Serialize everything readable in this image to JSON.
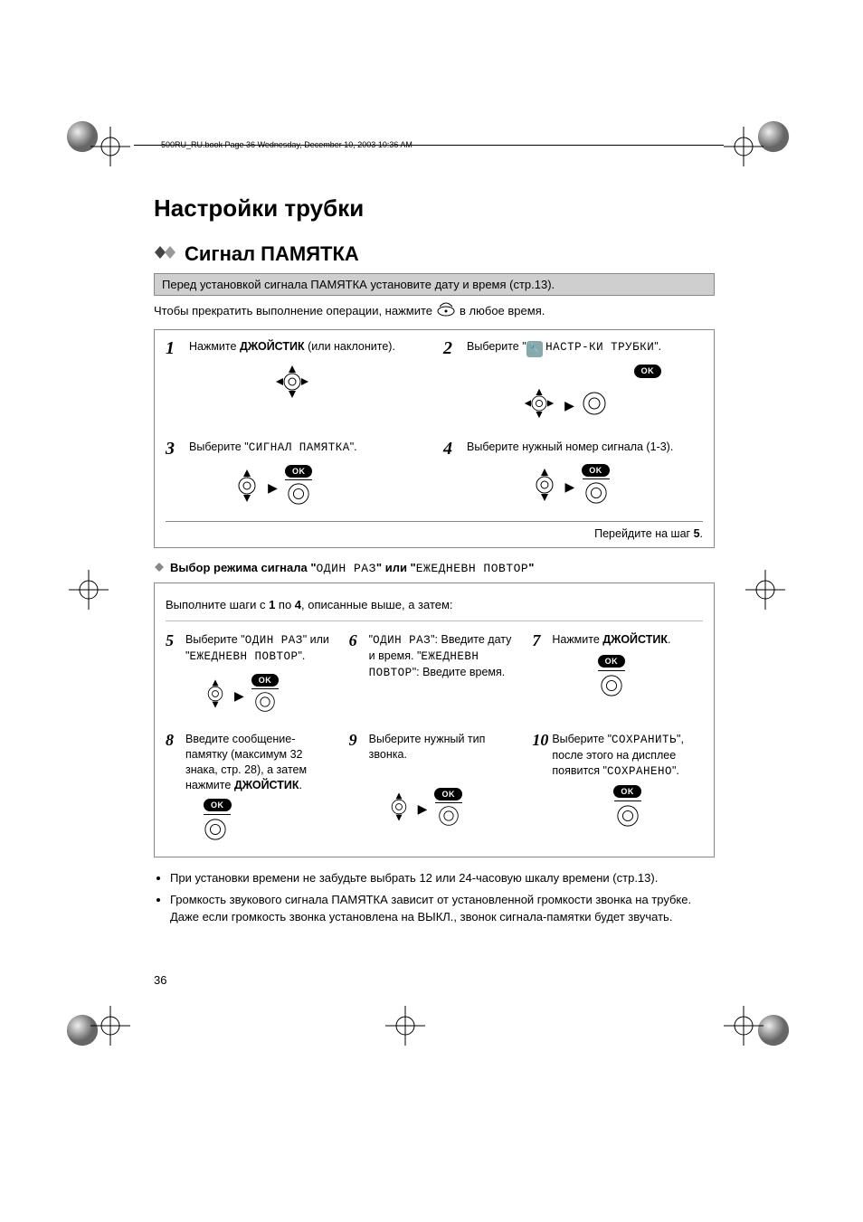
{
  "header_caption": "500RU_RU.book  Page 36  Wednesday, December 10, 2003  10:36 AM",
  "chapter_title": "Настройки трубки",
  "section_title": "Сигнал ПАМЯТКА",
  "banner": "Перед установкой сигнала ПАМЯТКА установите дату и время (стр.13).",
  "intro_prefix": "Чтобы прекратить выполнение операции, нажмите ",
  "intro_suffix": " в любое время.",
  "steps_top": [
    {
      "num": "1",
      "lines": [
        {
          "t": "Нажмите ",
          "b": false
        },
        {
          "t": "ДЖОЙСТИК",
          "b": true
        },
        {
          "t": " (или наклоните).",
          "b": false
        }
      ],
      "icon": "joystick-4way"
    },
    {
      "num": "2",
      "lines": [
        {
          "t": "Выберите \"",
          "b": false
        },
        {
          "t": "wrench",
          "b": false,
          "icon": true
        },
        {
          "t": " ",
          "b": false
        },
        {
          "t": "НАСТР-КИ ТРУБКИ",
          "b": false,
          "mono": true
        },
        {
          "t": "\".",
          "b": false
        }
      ],
      "icon": "joystick-4way-ok"
    },
    {
      "num": "3",
      "lines": [
        {
          "t": "Выберите \"",
          "b": false
        },
        {
          "t": "СИГНАЛ ПАМЯТКА",
          "b": false,
          "mono": true
        },
        {
          "t": "\".",
          "b": false
        }
      ],
      "icon": "joystick-updown-ok"
    },
    {
      "num": "4",
      "lines": [
        {
          "t": "Выберите нужный номер сигнала (1-3).",
          "b": false
        }
      ],
      "icon": "joystick-updown-ok"
    }
  ],
  "goto_step5": "Перейдите на шаг 5.",
  "sub_head_parts": [
    {
      "t": "Выбор режима сигнала \"",
      "b": true
    },
    {
      "t": "ОДИН РАЗ",
      "mono": true
    },
    {
      "t": "\" или \"",
      "b": true
    },
    {
      "t": "ЕЖЕДНЕВН ПОВТОР",
      "mono": true
    },
    {
      "t": "\"",
      "b": true
    }
  ],
  "inner_intro_parts": [
    {
      "t": "Выполните шаги с "
    },
    {
      "t": "1",
      "b": true
    },
    {
      "t": " по "
    },
    {
      "t": "4",
      "b": true
    },
    {
      "t": ", описанные выше, а затем:"
    }
  ],
  "steps_bottom": [
    {
      "num": "5",
      "body_parts": [
        {
          "t": "Выберите \""
        },
        {
          "t": "ОДИН РАЗ",
          "mono": true
        },
        {
          "t": "\" или \""
        },
        {
          "t": "ЕЖЕДНЕВН ПОВТОР",
          "mono": true
        },
        {
          "t": "\"."
        }
      ],
      "icon": "joystick-updown-ok"
    },
    {
      "num": "6",
      "body_parts": [
        {
          "t": "\""
        },
        {
          "t": "ОДИН РАЗ",
          "mono": true
        },
        {
          "t": "\": Введите дату и время. \""
        },
        {
          "t": "ЕЖЕДНЕВН ПОВТОР",
          "mono": true
        },
        {
          "t": "\": Введите время."
        }
      ],
      "icon": null
    },
    {
      "num": "7",
      "body_parts": [
        {
          "t": "Нажмите "
        },
        {
          "t": "ДЖОЙСТИК",
          "b": true
        },
        {
          "t": "."
        }
      ],
      "icon": "ok-only"
    },
    {
      "num": "8",
      "body_parts": [
        {
          "t": "Введите сообщение-памятку (максимум 32 знака, стр. 28), а затем нажмите "
        },
        {
          "t": "ДЖОЙСТИК",
          "b": true
        },
        {
          "t": "."
        }
      ],
      "icon": "ok-only"
    },
    {
      "num": "9",
      "body_parts": [
        {
          "t": "Выберите нужный тип звонка."
        }
      ],
      "icon": "joystick-updown-ok"
    },
    {
      "num": "10",
      "body_parts": [
        {
          "t": "Выберите \""
        },
        {
          "t": "СОХРАНИТЬ",
          "mono": true
        },
        {
          "t": "\", после этого на дисплее появится \""
        },
        {
          "t": "СОХРАНЕНО",
          "mono": true
        },
        {
          "t": "\"."
        }
      ],
      "icon": "ok-only"
    }
  ],
  "notes": [
    "При установки времени не забудьте выбрать 12 или 24-часовую шкалу времени (стр.13).",
    "Громкость звукового сигнала ПАМЯТКА зависит от установленной громкости звонка на трубке. Даже если громкость звонка установлена на ВЫКЛ., звонок сигнала-памятки будет звучать."
  ],
  "page_number": "36",
  "ok_label": "OK",
  "colors": {
    "banner_bg": "#cfcfcf",
    "border": "#888888",
    "text": "#000000"
  }
}
